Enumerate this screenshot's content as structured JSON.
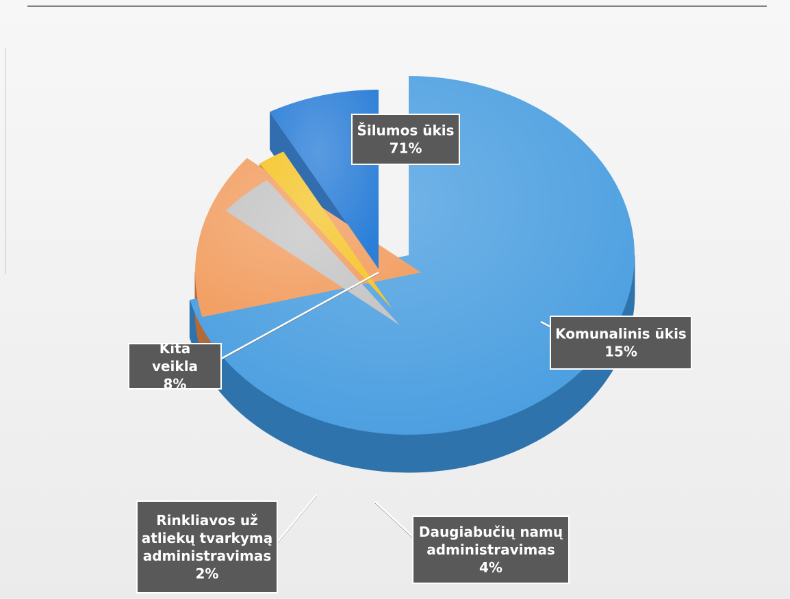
{
  "chart_data": {
    "type": "pie",
    "title": "",
    "legend": "none",
    "slices": [
      {
        "label": "Šilumos ūkis",
        "value": 71,
        "value_label": "71%",
        "color": "#4a9ee0",
        "side_color": "#2f73ad"
      },
      {
        "label": "Komunalinis ūkis",
        "value": 15,
        "value_label": "15%",
        "color": "#f2a064",
        "side_color": "#b86a35"
      },
      {
        "label": "Daugiabučių namų administravimas",
        "value": 4,
        "value_label": "4%",
        "color": "#c6c6c6",
        "side_color": "#6e6e6e"
      },
      {
        "label": "Rinkliavos už atliekų tvarkymą administravimas",
        "value": 2,
        "value_label": "2%",
        "color": "#f5c731",
        "side_color": "#bc9418"
      },
      {
        "label": "Kita veikla",
        "value": 8,
        "value_label": "8%",
        "color": "#2c7fd8",
        "side_color": "#1d5ea8"
      }
    ]
  }
}
